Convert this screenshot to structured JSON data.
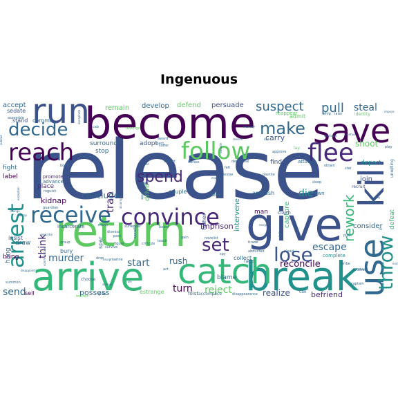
{
  "chart_data": {
    "type": "wordcloud",
    "title": "Ingenuous",
    "words": [
      {
        "text": "release",
        "weight": 100,
        "color": "#3b528b"
      },
      {
        "text": "become",
        "weight": 80,
        "color": "#440154"
      },
      {
        "text": "return",
        "weight": 72,
        "color": "#5ec962"
      },
      {
        "text": "give",
        "weight": 70,
        "color": "#3b528b"
      },
      {
        "text": "arrive",
        "weight": 62,
        "color": "#35b779"
      },
      {
        "text": "break",
        "weight": 62,
        "color": "#21918c"
      },
      {
        "text": "save",
        "weight": 58,
        "color": "#440154"
      },
      {
        "text": "catch",
        "weight": 55,
        "color": "#35b779"
      },
      {
        "text": "use",
        "weight": 56,
        "color": "#31688e"
      },
      {
        "text": "kill",
        "weight": 54,
        "color": "#3b528b"
      },
      {
        "text": "run",
        "weight": 48,
        "color": "#3b528b"
      },
      {
        "text": "reach",
        "weight": 42,
        "color": "#440154"
      },
      {
        "text": "follow",
        "weight": 40,
        "color": "#5ec962"
      },
      {
        "text": "flee",
        "weight": 40,
        "color": "#482878"
      },
      {
        "text": "convince",
        "weight": 38,
        "color": "#482878"
      },
      {
        "text": "receive",
        "weight": 36,
        "color": "#31688e"
      },
      {
        "text": "arrest",
        "weight": 36,
        "color": "#21918c"
      },
      {
        "text": "throw",
        "weight": 34,
        "color": "#21918c"
      },
      {
        "text": "decide",
        "weight": 32,
        "color": "#31688e"
      },
      {
        "text": "lose",
        "weight": 30,
        "color": "#3b528b"
      },
      {
        "text": "set",
        "weight": 30,
        "color": "#482878"
      },
      {
        "text": "make",
        "weight": 28,
        "color": "#31688e"
      },
      {
        "text": "spend",
        "weight": 26,
        "color": "#482878"
      },
      {
        "text": "rework",
        "weight": 24,
        "color": "#35b779"
      },
      {
        "text": "suspect",
        "weight": 22,
        "color": "#31688e"
      },
      {
        "text": "pull",
        "weight": 22,
        "color": "#31688e"
      },
      {
        "text": "steal",
        "weight": 18,
        "color": "#31688e"
      },
      {
        "text": "shoot",
        "weight": 16,
        "color": "#5ec962"
      },
      {
        "text": "start",
        "weight": 18,
        "color": "#31688e"
      },
      {
        "text": "murder",
        "weight": 18,
        "color": "#31688e"
      },
      {
        "text": "turn",
        "weight": 18,
        "color": "#440154"
      },
      {
        "text": "reject",
        "weight": 17,
        "color": "#5ec962"
      },
      {
        "text": "escape",
        "weight": 17,
        "color": "#31688e"
      },
      {
        "text": "die",
        "weight": 17,
        "color": "#21918c"
      },
      {
        "text": "send",
        "weight": 17,
        "color": "#31688e"
      },
      {
        "text": "think",
        "weight": 17,
        "color": "#482878"
      },
      {
        "text": "trap",
        "weight": 18,
        "color": "#482878"
      },
      {
        "text": "reconcile",
        "weight": 15,
        "color": "#440154"
      },
      {
        "text": "realize",
        "weight": 15,
        "color": "#3b528b"
      },
      {
        "text": "rush",
        "weight": 15,
        "color": "#31688e"
      },
      {
        "text": "conclude",
        "weight": 15,
        "color": "#31688e"
      },
      {
        "text": "possess",
        "weight": 14,
        "color": "#31688e"
      },
      {
        "text": "befriend",
        "weight": 14,
        "color": "#482878"
      },
      {
        "text": "kidnap",
        "weight": 14,
        "color": "#440154"
      },
      {
        "text": "intervene",
        "weight": 13,
        "color": "#21918c"
      },
      {
        "text": "capture",
        "weight": 13,
        "color": "#35b779"
      },
      {
        "text": "imprison",
        "weight": 14,
        "color": "#482878"
      },
      {
        "text": "consider",
        "weight": 13,
        "color": "#31688e"
      },
      {
        "text": "join",
        "weight": 13,
        "color": "#3b528b"
      },
      {
        "text": "carry",
        "weight": 14,
        "color": "#3b528b"
      },
      {
        "text": "remain",
        "weight": 13,
        "color": "#5ec962"
      },
      {
        "text": "develop",
        "weight": 13,
        "color": "#31688e"
      },
      {
        "text": "defend",
        "weight": 13,
        "color": "#5ec962"
      },
      {
        "text": "persuade",
        "weight": 13,
        "color": "#3b528b"
      },
      {
        "text": "accept",
        "weight": 12,
        "color": "#31688e"
      },
      {
        "text": "surround",
        "weight": 12,
        "color": "#31688e"
      },
      {
        "text": "adopt",
        "weight": 12,
        "color": "#3b528b"
      },
      {
        "text": "drive",
        "weight": 13,
        "color": "#5ec962"
      },
      {
        "text": "stop",
        "weight": 12,
        "color": "#31688e"
      },
      {
        "text": "fight",
        "weight": 12,
        "color": "#31688e"
      },
      {
        "text": "place",
        "weight": 12,
        "color": "#482878"
      },
      {
        "text": "label",
        "weight": 12,
        "color": "#440154"
      },
      {
        "text": "bring",
        "weight": 12,
        "color": "#440154"
      },
      {
        "text": "draw",
        "weight": 12,
        "color": "#31688e"
      },
      {
        "text": "hang",
        "weight": 12,
        "color": "#31688e"
      },
      {
        "text": "blame",
        "weight": 12,
        "color": "#31688e"
      },
      {
        "text": "find",
        "weight": 12,
        "color": "#3b528b"
      },
      {
        "text": "depart",
        "weight": 12,
        "color": "#21918c"
      },
      {
        "text": "man",
        "weight": 12,
        "color": "#440154"
      },
      {
        "text": "defeat",
        "weight": 11,
        "color": "#35b779"
      },
      {
        "text": "sedate",
        "weight": 11,
        "color": "#3b528b"
      },
      {
        "text": "commit",
        "weight": 11,
        "color": "#31688e"
      },
      {
        "text": "stand",
        "weight": 11,
        "color": "#3b528b"
      },
      {
        "text": "admit",
        "weight": 11,
        "color": "#5ec962"
      },
      {
        "text": "father",
        "weight": 11,
        "color": "#3b528b"
      },
      {
        "text": "bury",
        "weight": 11,
        "color": "#31688e"
      },
      {
        "text": "estrange",
        "weight": 11,
        "color": "#5ec962"
      },
      {
        "text": "sell",
        "weight": 10,
        "color": "#440154"
      },
      {
        "text": "insist",
        "weight": 10,
        "color": "#3b528b"
      },
      {
        "text": "spar",
        "weight": 10,
        "color": "#31688e"
      },
      {
        "text": "win",
        "weight": 10,
        "color": "#31688e"
      },
      {
        "text": "ambush",
        "weight": 10,
        "color": "#31688e"
      },
      {
        "text": "let",
        "weight": 10,
        "color": "#31688e"
      },
      {
        "text": "couple",
        "weight": 10,
        "color": "#31688e"
      },
      {
        "text": "collect",
        "weight": 10,
        "color": "#31688e"
      },
      {
        "text": "complete",
        "weight": 9,
        "color": "#21918c"
      },
      {
        "text": "attack",
        "weight": 9,
        "color": "#31688e"
      },
      {
        "text": "promote",
        "weight": 9,
        "color": "#482878"
      },
      {
        "text": "advance",
        "weight": 9,
        "color": "#31688e"
      },
      {
        "text": "incarcerate",
        "weight": 9,
        "color": "#31688e"
      },
      {
        "text": "foist",
        "weight": 9,
        "color": "#31688e"
      },
      {
        "text": "drown",
        "weight": 9,
        "color": "#31688e"
      },
      {
        "text": "claim",
        "weight": 9,
        "color": "#3b528b"
      },
      {
        "text": "recruit",
        "weight": 8,
        "color": "#3b528b"
      },
      {
        "text": "reappear",
        "weight": 9,
        "color": "#5ec962"
      },
      {
        "text": "identity",
        "weight": 8,
        "color": "#5ec962"
      },
      {
        "text": "unwilling",
        "weight": 8,
        "color": "#31688e"
      },
      {
        "text": "accomplice",
        "weight": 7,
        "color": "#31688e"
      },
      {
        "text": "disappearance",
        "weight": 7,
        "color": "#31688e"
      },
      {
        "text": "call",
        "weight": 8,
        "color": "#31688e"
      },
      {
        "text": "captain",
        "weight": 7,
        "color": "#31688e"
      },
      {
        "text": "choose",
        "weight": 8,
        "color": "#31688e"
      },
      {
        "text": "teach",
        "weight": 7,
        "color": "#31688e"
      },
      {
        "text": "criticize",
        "weight": 7,
        "color": "#31688e"
      },
      {
        "text": "radio",
        "weight": 7,
        "color": "#31688e"
      },
      {
        "text": "novelist",
        "weight": 7,
        "color": "#31688e"
      },
      {
        "text": "summon",
        "weight": 7,
        "color": "#31688e"
      },
      {
        "text": "guardian",
        "weight": 7,
        "color": "#31688e"
      },
      {
        "text": "group",
        "weight": 7,
        "color": "#31688e"
      },
      {
        "text": "tirade",
        "weight": 7,
        "color": "#31688e"
      },
      {
        "text": "delusional",
        "weight": 7,
        "color": "#31688e"
      },
      {
        "text": "harass",
        "weight": 7,
        "color": "#31688e"
      },
      {
        "text": "attract",
        "weight": 7,
        "color": "#31688e"
      },
      {
        "text": "suffer",
        "weight": 7,
        "color": "#31688e"
      },
      {
        "text": "oppose",
        "weight": 7,
        "color": "#31688e"
      },
      {
        "text": "boast",
        "weight": 7,
        "color": "#31688e"
      },
      {
        "text": "roguish",
        "weight": 7,
        "color": "#31688e"
      },
      {
        "text": "assemble",
        "weight": 7,
        "color": "#31688e"
      },
      {
        "text": "felt",
        "weight": 7,
        "color": "#31688e"
      },
      {
        "text": "devise",
        "weight": 7,
        "color": "#31688e"
      },
      {
        "text": "reunite",
        "weight": 7,
        "color": "#31688e"
      },
      {
        "text": "sleep",
        "weight": 7,
        "color": "#31688e"
      },
      {
        "text": "bribe",
        "weight": 7,
        "color": "#31688e"
      },
      {
        "text": "brother",
        "weight": 7,
        "color": "#31688e"
      },
      {
        "text": "share",
        "weight": 7,
        "color": "#31688e"
      },
      {
        "text": "star",
        "weight": 6,
        "color": "#31688e"
      },
      {
        "text": "obtain",
        "weight": 6,
        "color": "#31688e"
      },
      {
        "text": "approve",
        "weight": 6,
        "color": "#31688e"
      },
      {
        "text": "whip",
        "weight": 6,
        "color": "#31688e"
      },
      {
        "text": "later",
        "weight": 6,
        "color": "#31688e"
      },
      {
        "text": "lay",
        "weight": 6,
        "color": "#5ec962"
      },
      {
        "text": "play",
        "weight": 6,
        "color": "#31688e"
      },
      {
        "text": "pick",
        "weight": 6,
        "color": "#31688e"
      },
      {
        "text": "award",
        "weight": 6,
        "color": "#31688e"
      },
      {
        "text": "eject",
        "weight": 6,
        "color": "#31688e"
      },
      {
        "text": "money",
        "weight": 6,
        "color": "#31688e"
      },
      {
        "text": "surrender",
        "weight": 6,
        "color": "#31688e"
      },
      {
        "text": "board",
        "weight": 6,
        "color": "#31688e"
      },
      {
        "text": "mean",
        "weight": 6,
        "color": "#31688e"
      },
      {
        "text": "dismiss",
        "weight": 6,
        "color": "#31688e"
      },
      {
        "text": "survive",
        "weight": 6,
        "color": "#31688e"
      },
      {
        "text": "figure",
        "weight": 6,
        "color": "#31688e"
      },
      {
        "text": "pass",
        "weight": 6,
        "color": "#31688e"
      },
      {
        "text": "socially",
        "weight": 6,
        "color": "#31688e"
      },
      {
        "text": "drop",
        "weight": 6,
        "color": "#31688e"
      },
      {
        "text": "marine",
        "weight": 6,
        "color": "#31688e"
      },
      {
        "text": "spy",
        "weight": 6,
        "color": "#31688e"
      },
      {
        "text": "abducted",
        "weight": 6,
        "color": "#31688e"
      },
      {
        "text": "plead",
        "weight": 6,
        "color": "#31688e"
      },
      {
        "text": "fall",
        "weight": 6,
        "color": "#31688e"
      },
      {
        "text": "gain",
        "weight": 6,
        "color": "#31688e"
      },
      {
        "text": "cab",
        "weight": 6,
        "color": "#31688e"
      },
      {
        "text": "revenge",
        "weight": 6,
        "color": "#5ec962"
      },
      {
        "text": "grab",
        "weight": 6,
        "color": "#31688e"
      },
      {
        "text": "restrict",
        "weight": 6,
        "color": "#5ec962"
      },
      {
        "text": "communicate",
        "weight": 5,
        "color": "#31688e"
      },
      {
        "text": "disappoint",
        "weight": 5,
        "color": "#31688e"
      },
      {
        "text": "change",
        "weight": 5,
        "color": "#31688e"
      },
      {
        "text": "betray",
        "weight": 5,
        "color": "#31688e"
      },
      {
        "text": "exception",
        "weight": 5,
        "color": "#31688e"
      },
      {
        "text": "describe",
        "weight": 5,
        "color": "#31688e"
      },
      {
        "text": "resign",
        "weight": 5,
        "color": "#31688e"
      },
      {
        "text": "rescind",
        "weight": 5,
        "color": "#31688e"
      },
      {
        "text": "lure",
        "weight": 5,
        "color": "#31688e"
      },
      {
        "text": "vindicate",
        "weight": 5,
        "color": "#31688e"
      },
      {
        "text": "confuse",
        "weight": 5,
        "color": "#31688e"
      },
      {
        "text": "impose",
        "weight": 5,
        "color": "#31688e"
      },
      {
        "text": "subdue",
        "weight": 5,
        "color": "#31688e"
      },
      {
        "text": "decapitate",
        "weight": 5,
        "color": "#31688e"
      },
      {
        "text": "swindle",
        "weight": 5,
        "color": "#31688e"
      },
      {
        "text": "marry",
        "weight": 5,
        "color": "#31688e"
      },
      {
        "text": "accompany",
        "weight": 5,
        "color": "#31688e"
      },
      {
        "text": "usurp",
        "weight": 5,
        "color": "#31688e"
      },
      {
        "text": "appear",
        "weight": 5,
        "color": "#31688e"
      },
      {
        "text": "avenge",
        "weight": 5,
        "color": "#31688e"
      },
      {
        "text": "gay",
        "weight": 5,
        "color": "#31688e"
      },
      {
        "text": "end",
        "weight": 5,
        "color": "#31688e"
      },
      {
        "text": "tie",
        "weight": 5,
        "color": "#31688e"
      },
      {
        "text": "relent",
        "weight": 5,
        "color": "#31688e"
      },
      {
        "text": "rid",
        "weight": 5,
        "color": "#31688e"
      },
      {
        "text": "hold",
        "weight": 5,
        "color": "#31688e"
      },
      {
        "text": "act",
        "weight": 5,
        "color": "#31688e"
      },
      {
        "text": "rule",
        "weight": 5,
        "color": "#31688e"
      }
    ]
  }
}
